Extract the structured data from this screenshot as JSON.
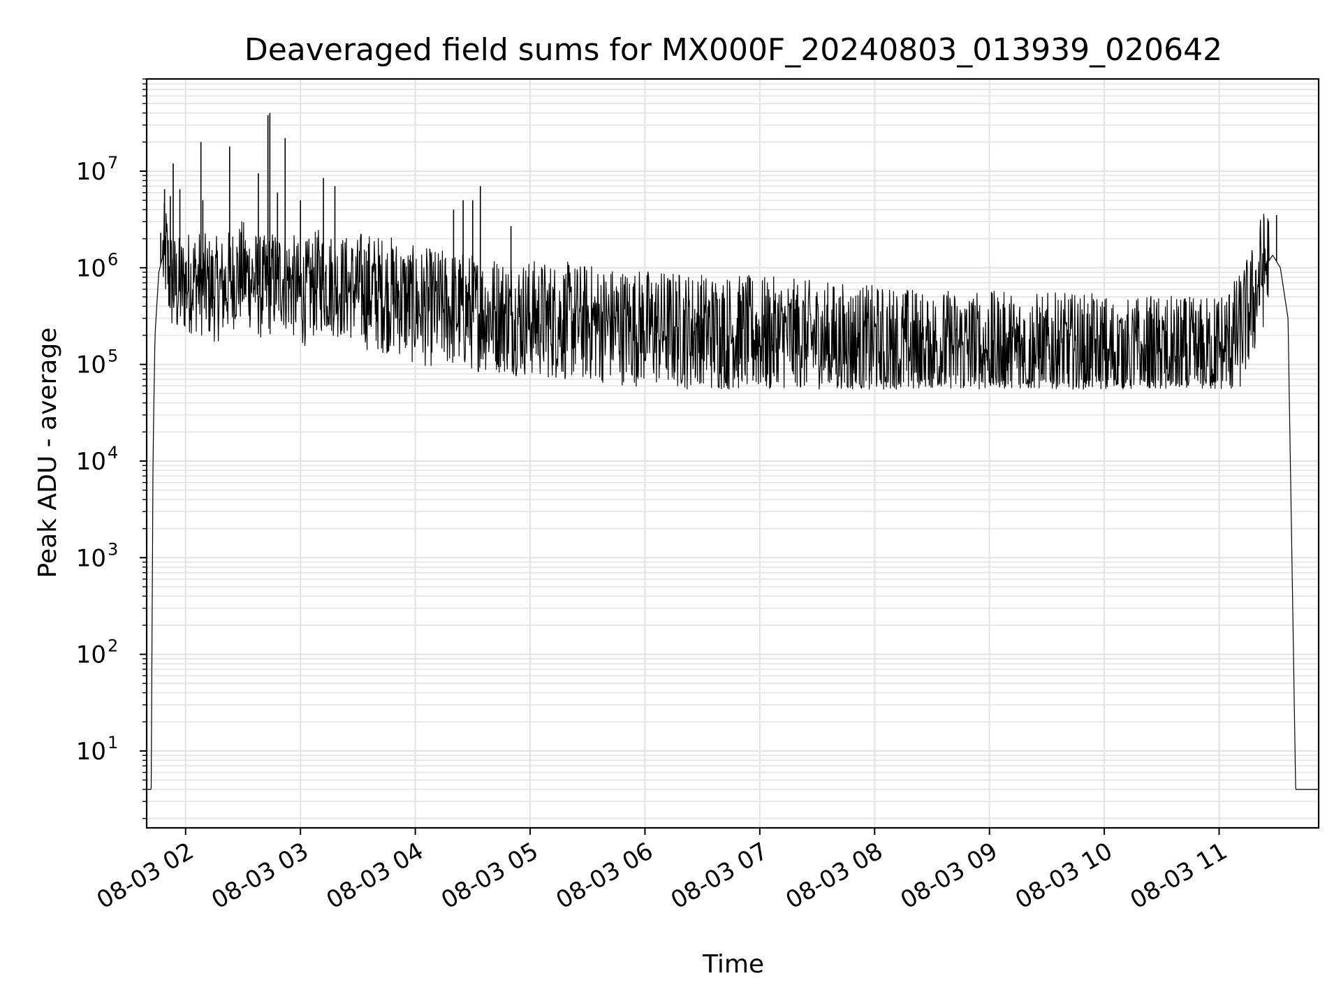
{
  "chart_data": {
    "type": "line",
    "title": "Deaveraged field sums for MX000F_20240803_013939_020642",
    "xlabel": "Time",
    "ylabel": "Peak ADU - average",
    "yscale": "log",
    "ylim": [
      1.6,
      90000000
    ],
    "xlim": [
      "08-03 01:39:39",
      "08-03 11:52:00"
    ],
    "grid": true,
    "line_color": "#000000",
    "grid_color": "#e3e3e3",
    "x_ticks": [
      {
        "label": "08-03 02",
        "t": "08-03 02:00"
      },
      {
        "label": "08-03 03",
        "t": "08-03 03:00"
      },
      {
        "label": "08-03 04",
        "t": "08-03 04:00"
      },
      {
        "label": "08-03 05",
        "t": "08-03 05:00"
      },
      {
        "label": "08-03 06",
        "t": "08-03 06:00"
      },
      {
        "label": "08-03 07",
        "t": "08-03 07:00"
      },
      {
        "label": "08-03 08",
        "t": "08-03 08:00"
      },
      {
        "label": "08-03 09",
        "t": "08-03 09:00"
      },
      {
        "label": "08-03 10",
        "t": "08-03 10:00"
      },
      {
        "label": "08-03 11",
        "t": "08-03 11:00"
      }
    ],
    "y_ticks": [
      {
        "base": "10",
        "exp": "1",
        "value": 10
      },
      {
        "base": "10",
        "exp": "2",
        "value": 100
      },
      {
        "base": "10",
        "exp": "3",
        "value": 1000
      },
      {
        "base": "10",
        "exp": "4",
        "value": 10000
      },
      {
        "base": "10",
        "exp": "5",
        "value": 100000
      },
      {
        "base": "10",
        "exp": "6",
        "value": 1000000
      },
      {
        "base": "10",
        "exp": "7",
        "value": 10000000
      }
    ],
    "series": [
      {
        "x": [
          "08-03 01:39:39",
          "08-03 01:42:00",
          "08-03 01:43:00",
          "08-03 01:44:00",
          "08-03 01:46:00",
          "08-03 01:48:00",
          "08-03 01:50:00",
          "08-03 01:51:00",
          "08-03 01:53:00",
          "08-03 01:56:00",
          "08-03 02:00:00",
          "08-03 02:05:00",
          "08-03 02:10:00",
          "08-03 02:15:00",
          "08-03 02:20:00",
          "08-03 02:25:00",
          "08-03 02:30:00",
          "08-03 02:35:00",
          "08-03 02:40:00",
          "08-03 02:45:00",
          "08-03 02:50:00",
          "08-03 02:55:00",
          "08-03 03:00:00",
          "08-03 03:05:00",
          "08-03 03:10:00",
          "08-03 03:15:00",
          "08-03 03:20:00",
          "08-03 03:30:00",
          "08-03 03:40:00",
          "08-03 03:50:00",
          "08-03 04:00:00",
          "08-03 04:15:00",
          "08-03 04:30:00",
          "08-03 04:45:00",
          "08-03 05:00:00",
          "08-03 05:20:00",
          "08-03 05:40:00",
          "08-03 06:00:00",
          "08-03 06:30:00",
          "08-03 07:00:00",
          "08-03 07:30:00",
          "08-03 08:00:00",
          "08-03 08:30:00",
          "08-03 09:00:00",
          "08-03 09:30:00",
          "08-03 10:00:00",
          "08-03 10:30:00",
          "08-03 10:50:00",
          "08-03 11:00:00",
          "08-03 11:10:00",
          "08-03 11:18:00",
          "08-03 11:22:00",
          "08-03 11:28:00",
          "08-03 11:32:00",
          "08-03 11:36:00",
          "08-03 11:40:00",
          "08-03 11:42:00",
          "08-03 11:44:00",
          "08-03 11:52:00"
        ],
        "y": [
          4,
          4,
          12000,
          200000,
          900000,
          1300000,
          1400000,
          900000,
          700000,
          600000,
          700000,
          750000,
          650000,
          600000,
          620000,
          800000,
          900000,
          750000,
          600000,
          700000,
          800000,
          700000,
          500000,
          600000,
          750000,
          700000,
          650000,
          600000,
          550000,
          520000,
          400000,
          380000,
          350000,
          330000,
          300000,
          280000,
          260000,
          240000,
          220000,
          200000,
          180000,
          160000,
          150000,
          140000,
          135000,
          130000,
          125000,
          120000,
          140000,
          200000,
          450000,
          900000,
          1350000,
          1000000,
          300000,
          4,
          4,
          4,
          4
        ]
      }
    ],
    "spikes": [
      {
        "t": "08-03 01:47:00",
        "y": 2300000
      },
      {
        "t": "08-03 01:49:00",
        "y": 6500000
      },
      {
        "t": "08-03 01:52:00",
        "y": 5500000
      },
      {
        "t": "08-03 01:53:30",
        "y": 12000000
      },
      {
        "t": "08-03 01:57:00",
        "y": 6500000
      },
      {
        "t": "08-03 02:08:00",
        "y": 20000000
      },
      {
        "t": "08-03 02:09:00",
        "y": 5000000
      },
      {
        "t": "08-03 02:23:00",
        "y": 18000000
      },
      {
        "t": "08-03 02:38:00",
        "y": 9500000
      },
      {
        "t": "08-03 02:43:00",
        "y": 38000000
      },
      {
        "t": "08-03 02:44:00",
        "y": 40000000
      },
      {
        "t": "08-03 02:48:00",
        "y": 6000000
      },
      {
        "t": "08-03 02:52:00",
        "y": 22000000
      },
      {
        "t": "08-03 03:00:00",
        "y": 5000000
      },
      {
        "t": "08-03 03:12:00",
        "y": 8500000
      },
      {
        "t": "08-03 03:18:00",
        "y": 7000000
      },
      {
        "t": "08-03 04:20:00",
        "y": 4000000
      },
      {
        "t": "08-03 04:25:00",
        "y": 5000000
      },
      {
        "t": "08-03 04:30:00",
        "y": 5000000
      },
      {
        "t": "08-03 04:34:00",
        "y": 7000000
      },
      {
        "t": "08-03 04:50:00",
        "y": 2700000
      },
      {
        "t": "08-03 11:30:00",
        "y": 3500000
      }
    ]
  }
}
